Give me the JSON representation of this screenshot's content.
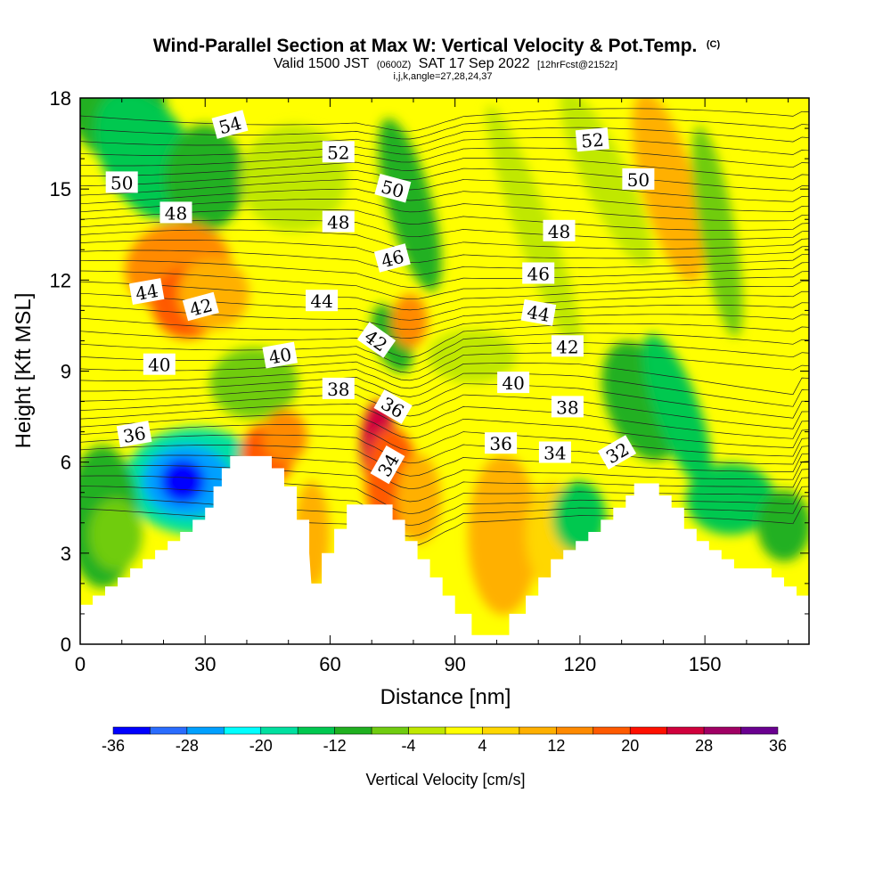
{
  "header": {
    "title_main": "Wind-Parallel Section at Max W: Vertical Velocity & Pot.Temp.",
    "title_copyright": "(C)",
    "valid_prefix": "Valid 1500 JST",
    "valid_z": "(0600Z)",
    "valid_date": "SAT 17 Sep 2022",
    "forecast_info": "[12hrFcst@2152z]",
    "params_line": "i,j,k,angle=27,28,24,37"
  },
  "chart_data": {
    "type": "heatmap",
    "title": "Wind-Parallel Section at Max W: Vertical Velocity & Pot.Temp.",
    "xlabel": "Distance [nm]",
    "ylabel": "Height [Kft MSL]",
    "xlim": [
      0,
      175
    ],
    "ylim": [
      0,
      18
    ],
    "x_ticks": [
      0,
      30,
      60,
      90,
      120,
      150
    ],
    "y_ticks": [
      0,
      3,
      6,
      9,
      12,
      15,
      18
    ],
    "colorbar": {
      "title": "Vertical Velocity [cm/s]",
      "bounds": [
        -36,
        -32,
        -28,
        -24,
        -20,
        -16,
        -12,
        -8,
        -4,
        0,
        4,
        8,
        12,
        16,
        20,
        24,
        28,
        32,
        36
      ],
      "tick_labels": [
        "-36",
        "-28",
        "-20",
        "-12",
        "-4",
        "4",
        "12",
        "20",
        "28",
        "36"
      ],
      "colors": [
        "#0000ff",
        "#2a6cff",
        "#00a0ff",
        "#00ffff",
        "#00e0a0",
        "#00c850",
        "#20b020",
        "#70cc10",
        "#c0e800",
        "#ffff00",
        "#ffd700",
        "#ffb000",
        "#ff8a00",
        "#ff5a00",
        "#ff1000",
        "#d0003c",
        "#a00064",
        "#6a0090"
      ]
    },
    "terrain": [
      [
        0,
        1.3
      ],
      [
        3,
        1.3
      ],
      [
        3,
        1.6
      ],
      [
        6,
        1.6
      ],
      [
        6,
        1.9
      ],
      [
        9,
        1.9
      ],
      [
        9,
        2.2
      ],
      [
        12,
        2.2
      ],
      [
        12,
        2.5
      ],
      [
        15,
        2.5
      ],
      [
        15,
        2.8
      ],
      [
        18,
        2.8
      ],
      [
        18,
        3.1
      ],
      [
        21,
        3.1
      ],
      [
        21,
        3.4
      ],
      [
        24,
        3.4
      ],
      [
        24,
        3.7
      ],
      [
        27,
        3.7
      ],
      [
        27,
        4.1
      ],
      [
        30,
        4.1
      ],
      [
        30,
        4.5
      ],
      [
        32,
        4.5
      ],
      [
        32,
        5.2
      ],
      [
        34,
        5.2
      ],
      [
        34,
        5.8
      ],
      [
        36,
        5.8
      ],
      [
        36,
        6.2
      ],
      [
        46,
        6.2
      ],
      [
        46,
        5.8
      ],
      [
        49,
        5.8
      ],
      [
        49,
        5.2
      ],
      [
        52,
        5.2
      ],
      [
        52,
        4.1
      ],
      [
        55,
        4.1
      ],
      [
        55,
        3.0
      ],
      [
        55.5,
        2.0
      ],
      [
        58,
        2.0
      ],
      [
        58,
        3.0
      ],
      [
        61,
        3.0
      ],
      [
        61,
        3.8
      ],
      [
        64,
        3.8
      ],
      [
        64,
        4.6
      ],
      [
        69,
        4.6
      ],
      [
        69,
        4.6
      ],
      [
        72,
        4.6
      ],
      [
        72,
        4.6
      ],
      [
        75,
        4.6
      ],
      [
        75,
        4.1
      ],
      [
        78,
        4.1
      ],
      [
        78,
        3.4
      ],
      [
        81,
        3.4
      ],
      [
        81,
        2.8
      ],
      [
        84,
        2.8
      ],
      [
        84,
        2.2
      ],
      [
        87,
        2.2
      ],
      [
        87,
        1.6
      ],
      [
        90,
        1.6
      ],
      [
        90,
        1.0
      ],
      [
        94,
        1.0
      ],
      [
        94,
        0.3
      ],
      [
        103,
        0.3
      ],
      [
        103,
        1.0
      ],
      [
        107,
        1.0
      ],
      [
        107,
        1.6
      ],
      [
        110,
        1.6
      ],
      [
        110,
        2.2
      ],
      [
        113,
        2.2
      ],
      [
        113,
        2.8
      ],
      [
        116,
        2.8
      ],
      [
        116,
        3.1
      ],
      [
        119,
        3.1
      ],
      [
        119,
        3.4
      ],
      [
        122,
        3.4
      ],
      [
        122,
        3.7
      ],
      [
        125,
        3.7
      ],
      [
        125,
        4.1
      ],
      [
        128,
        4.1
      ],
      [
        128,
        4.5
      ],
      [
        131,
        4.5
      ],
      [
        131,
        4.9
      ],
      [
        133,
        4.9
      ],
      [
        133,
        5.3
      ],
      [
        139,
        5.3
      ],
      [
        139,
        4.9
      ],
      [
        142,
        4.9
      ],
      [
        142,
        4.5
      ],
      [
        145,
        4.5
      ],
      [
        145,
        3.8
      ],
      [
        148,
        3.8
      ],
      [
        148,
        3.4
      ],
      [
        151,
        3.4
      ],
      [
        151,
        3.1
      ],
      [
        154,
        3.1
      ],
      [
        154,
        2.8
      ],
      [
        157,
        2.8
      ],
      [
        157,
        2.5
      ],
      [
        166,
        2.5
      ],
      [
        166,
        2.2
      ],
      [
        169,
        2.2
      ],
      [
        169,
        1.9
      ],
      [
        172,
        1.9
      ],
      [
        172,
        1.6
      ],
      [
        175,
        1.6
      ],
      [
        175,
        0
      ],
      [
        0,
        0
      ]
    ],
    "theta_contour_labels": [
      {
        "value": "54",
        "x": 36,
        "y": 17.1,
        "angle": -15
      },
      {
        "value": "52",
        "x": 62,
        "y": 16.2,
        "angle": 0
      },
      {
        "value": "52",
        "x": 123,
        "y": 16.6,
        "angle": -5
      },
      {
        "value": "50",
        "x": 10,
        "y": 15.2,
        "angle": 0
      },
      {
        "value": "50",
        "x": 75,
        "y": 15.0,
        "angle": 15
      },
      {
        "value": "50",
        "x": 134,
        "y": 15.3,
        "angle": 0
      },
      {
        "value": "48",
        "x": 23,
        "y": 14.2,
        "angle": 0
      },
      {
        "value": "48",
        "x": 62,
        "y": 13.9,
        "angle": 0
      },
      {
        "value": "48",
        "x": 115,
        "y": 13.6,
        "angle": 0
      },
      {
        "value": "46",
        "x": 75,
        "y": 12.7,
        "angle": -15
      },
      {
        "value": "46",
        "x": 110,
        "y": 12.2,
        "angle": 0
      },
      {
        "value": "44",
        "x": 16,
        "y": 11.6,
        "angle": -10
      },
      {
        "value": "44",
        "x": 58,
        "y": 11.3,
        "angle": 0
      },
      {
        "value": "44",
        "x": 110,
        "y": 10.9,
        "angle": 10
      },
      {
        "value": "42",
        "x": 29,
        "y": 11.1,
        "angle": -15
      },
      {
        "value": "42",
        "x": 71,
        "y": 10.0,
        "angle": 35
      },
      {
        "value": "42",
        "x": 117,
        "y": 9.8,
        "angle": 0
      },
      {
        "value": "40",
        "x": 19,
        "y": 9.2,
        "angle": 0
      },
      {
        "value": "40",
        "x": 48,
        "y": 9.5,
        "angle": -10
      },
      {
        "value": "40",
        "x": 104,
        "y": 8.6,
        "angle": 0
      },
      {
        "value": "38",
        "x": 62,
        "y": 8.4,
        "angle": 0
      },
      {
        "value": "38",
        "x": 117,
        "y": 7.8,
        "angle": 0
      },
      {
        "value": "36",
        "x": 13,
        "y": 6.9,
        "angle": -10
      },
      {
        "value": "36",
        "x": 75,
        "y": 7.8,
        "angle": 30
      },
      {
        "value": "36",
        "x": 101,
        "y": 6.6,
        "angle": 0
      },
      {
        "value": "34",
        "x": 74,
        "y": 5.9,
        "angle": -60
      },
      {
        "value": "34",
        "x": 114,
        "y": 6.3,
        "angle": 0
      },
      {
        "value": "32",
        "x": 129,
        "y": 6.3,
        "angle": -30
      }
    ]
  }
}
